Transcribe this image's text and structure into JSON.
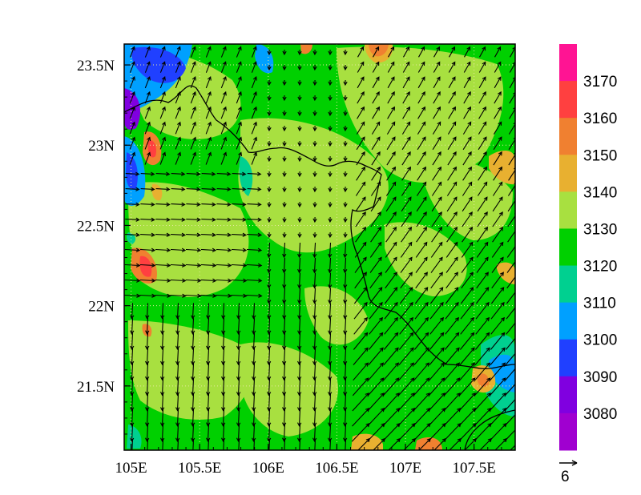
{
  "map": {
    "x_ticks": [
      "105E",
      "105.5E",
      "106E",
      "106.5E",
      "107E",
      "107.5E"
    ],
    "y_ticks": [
      "23.5N",
      "23N",
      "22.5N",
      "22N",
      "21.5N"
    ],
    "lon_range": [
      104.95,
      107.8
    ],
    "lat_range": [
      21.1,
      23.63
    ]
  },
  "colorbar": {
    "labels": [
      "3170",
      "3160",
      "3150",
      "3140",
      "3130",
      "3120",
      "3110",
      "3100",
      "3090",
      "3080"
    ],
    "colors": [
      "#ff1493",
      "#ff4040",
      "#f08030",
      "#e8b030",
      "#a8e040",
      "#00d000",
      "#00d090",
      "#00a0ff",
      "#2040ff",
      "#8000e0",
      "#a000d0"
    ]
  },
  "vector_reference": {
    "label": "6"
  },
  "icons": [
    "vector-reference-arrow-icon"
  ]
}
